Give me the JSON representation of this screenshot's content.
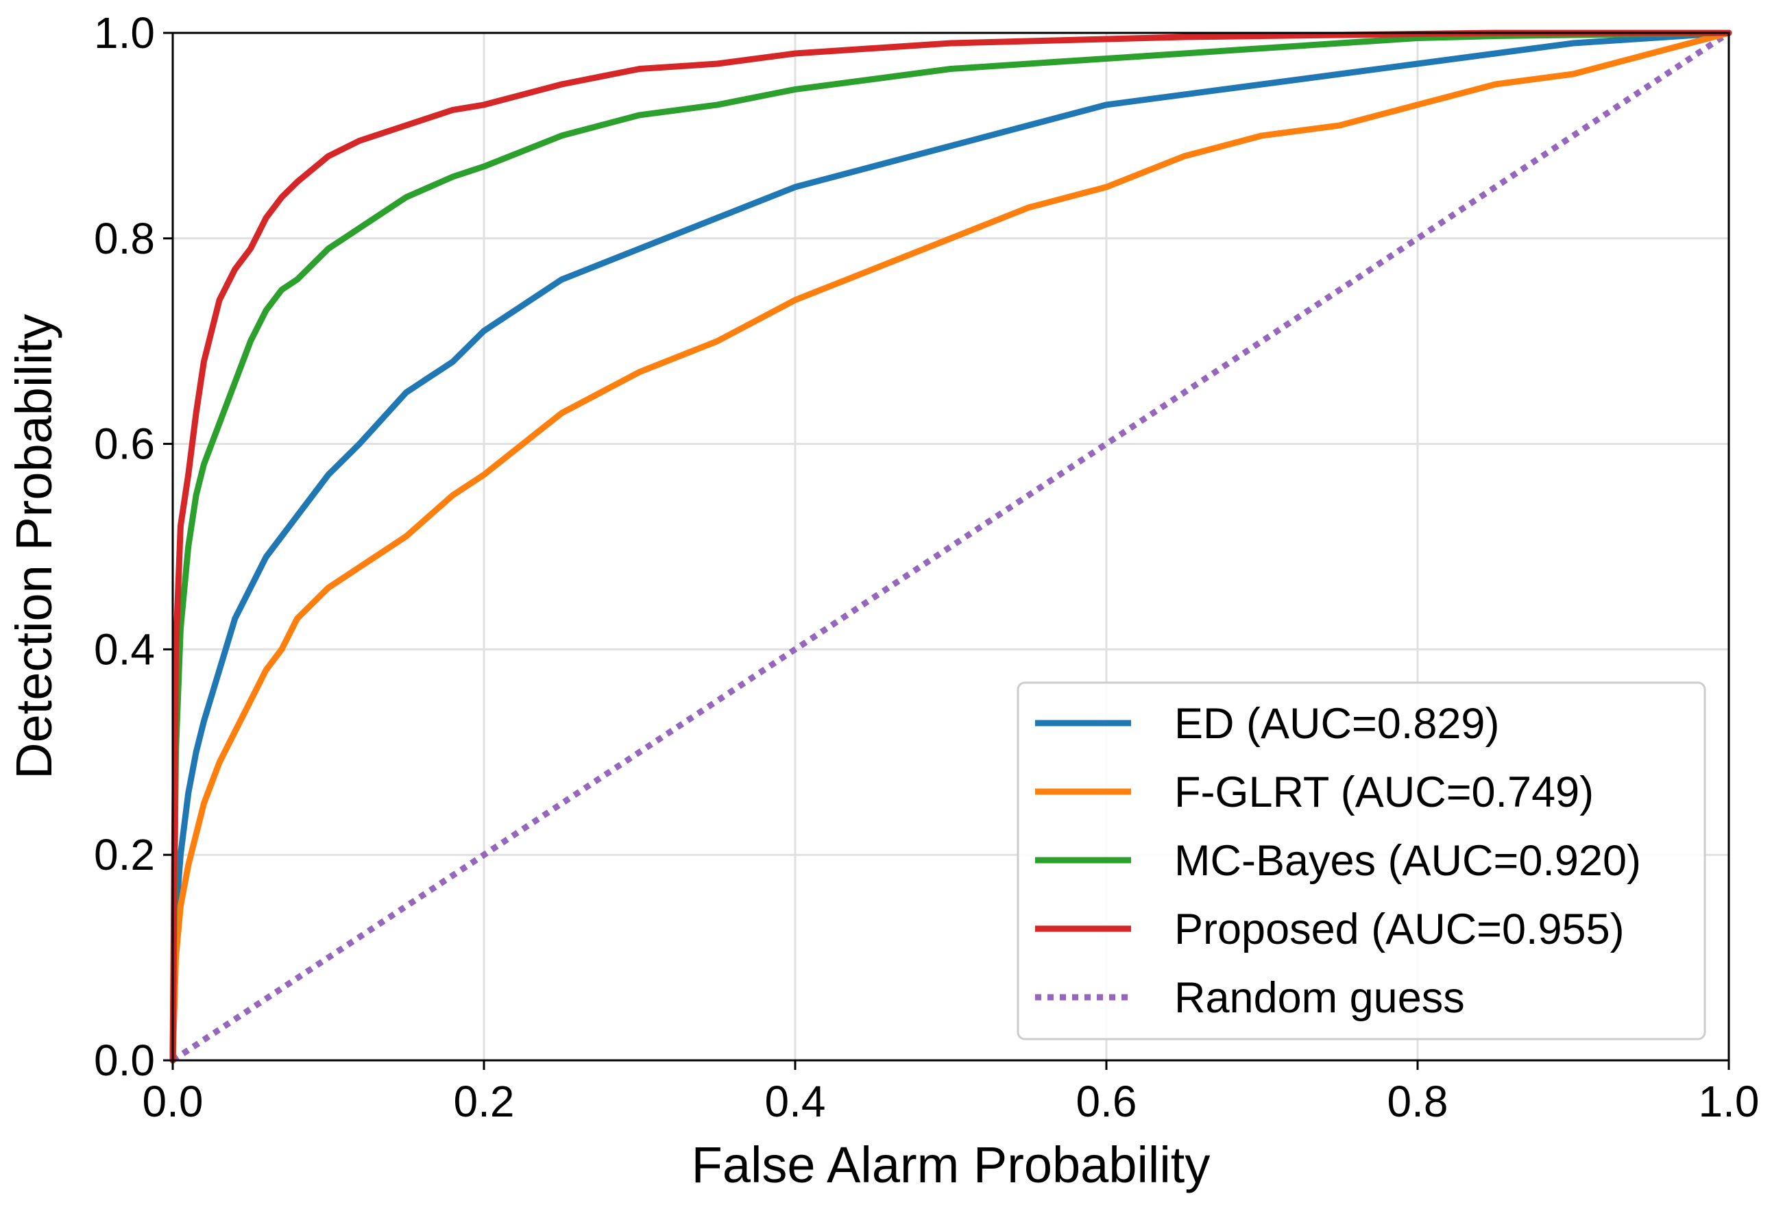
{
  "chart_data": {
    "type": "line",
    "title": "",
    "xlabel": "False Alarm Probability",
    "ylabel": "Detection Probability",
    "xlim": [
      0.0,
      1.0
    ],
    "ylim": [
      0.0,
      1.0
    ],
    "xticks": [
      "0.0",
      "0.2",
      "0.4",
      "0.6",
      "0.8",
      "1.0"
    ],
    "yticks": [
      "0.0",
      "0.2",
      "0.4",
      "0.6",
      "0.8",
      "1.0"
    ],
    "grid": true,
    "legend_position": "lower-right",
    "series": [
      {
        "name": "ED (AUC=0.829)",
        "color": "#1f77b4",
        "style": "solid",
        "x": [
          0,
          0.002,
          0.005,
          0.01,
          0.015,
          0.02,
          0.03,
          0.04,
          0.05,
          0.06,
          0.07,
          0.08,
          0.1,
          0.12,
          0.15,
          0.18,
          0.2,
          0.25,
          0.3,
          0.35,
          0.4,
          0.45,
          0.5,
          0.55,
          0.6,
          0.65,
          0.7,
          0.75,
          0.8,
          0.85,
          0.9,
          0.95,
          1.0
        ],
        "y": [
          0,
          0.14,
          0.2,
          0.26,
          0.3,
          0.33,
          0.38,
          0.43,
          0.46,
          0.49,
          0.51,
          0.53,
          0.57,
          0.6,
          0.65,
          0.68,
          0.71,
          0.76,
          0.79,
          0.82,
          0.85,
          0.87,
          0.89,
          0.91,
          0.93,
          0.94,
          0.95,
          0.96,
          0.97,
          0.98,
          0.99,
          0.995,
          1.0
        ]
      },
      {
        "name": "F-GLRT (AUC=0.749)",
        "color": "#ff7f0e",
        "style": "solid",
        "x": [
          0,
          0.002,
          0.005,
          0.01,
          0.015,
          0.02,
          0.03,
          0.04,
          0.05,
          0.06,
          0.07,
          0.08,
          0.1,
          0.12,
          0.15,
          0.18,
          0.2,
          0.25,
          0.3,
          0.35,
          0.4,
          0.45,
          0.5,
          0.55,
          0.6,
          0.65,
          0.7,
          0.75,
          0.8,
          0.85,
          0.9,
          0.95,
          1.0
        ],
        "y": [
          0,
          0.1,
          0.15,
          0.19,
          0.22,
          0.25,
          0.29,
          0.32,
          0.35,
          0.38,
          0.4,
          0.43,
          0.46,
          0.48,
          0.51,
          0.55,
          0.57,
          0.63,
          0.67,
          0.7,
          0.74,
          0.77,
          0.8,
          0.83,
          0.85,
          0.88,
          0.9,
          0.91,
          0.93,
          0.95,
          0.96,
          0.98,
          1.0
        ]
      },
      {
        "name": "MC-Bayes (AUC=0.920)",
        "color": "#2ca02c",
        "style": "solid",
        "x": [
          0,
          0.002,
          0.005,
          0.01,
          0.015,
          0.02,
          0.03,
          0.04,
          0.05,
          0.06,
          0.07,
          0.08,
          0.1,
          0.12,
          0.15,
          0.18,
          0.2,
          0.25,
          0.3,
          0.35,
          0.4,
          0.45,
          0.5,
          0.55,
          0.6,
          0.65,
          0.7,
          0.75,
          0.8,
          0.85,
          0.9,
          0.95,
          1.0
        ],
        "y": [
          0,
          0.3,
          0.42,
          0.5,
          0.55,
          0.58,
          0.62,
          0.66,
          0.7,
          0.73,
          0.75,
          0.76,
          0.79,
          0.81,
          0.84,
          0.86,
          0.87,
          0.9,
          0.92,
          0.93,
          0.945,
          0.955,
          0.965,
          0.97,
          0.975,
          0.98,
          0.985,
          0.99,
          0.995,
          0.997,
          0.998,
          0.999,
          1.0
        ]
      },
      {
        "name": "Proposed (AUC=0.955)",
        "color": "#d62728",
        "style": "solid",
        "x": [
          0,
          0.002,
          0.005,
          0.01,
          0.015,
          0.02,
          0.03,
          0.04,
          0.05,
          0.06,
          0.07,
          0.08,
          0.1,
          0.12,
          0.15,
          0.18,
          0.2,
          0.25,
          0.3,
          0.35,
          0.4,
          0.45,
          0.5,
          0.55,
          0.6,
          0.65,
          0.7,
          0.75,
          0.8,
          0.85,
          0.9,
          0.95,
          1.0
        ],
        "y": [
          0,
          0.4,
          0.52,
          0.57,
          0.63,
          0.68,
          0.74,
          0.77,
          0.79,
          0.82,
          0.84,
          0.855,
          0.88,
          0.895,
          0.91,
          0.925,
          0.93,
          0.95,
          0.965,
          0.97,
          0.98,
          0.985,
          0.99,
          0.992,
          0.994,
          0.996,
          0.997,
          0.998,
          0.999,
          1.0,
          1.0,
          1.0,
          1.0
        ]
      },
      {
        "name": "Random guess",
        "color": "#9467bd",
        "style": "dotted",
        "x": [
          0,
          1
        ],
        "y": [
          0,
          1
        ]
      }
    ]
  }
}
